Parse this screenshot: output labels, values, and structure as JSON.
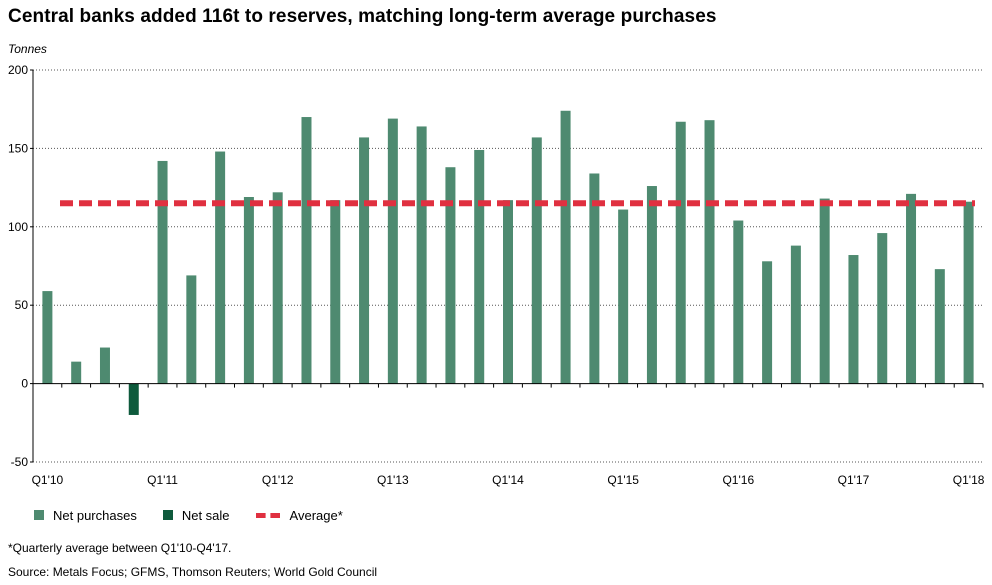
{
  "title": "Central banks added 116t to reserves, matching long-term average purchases",
  "unit_label": "Tonnes",
  "footnote": "*Quarterly average between Q1'10-Q4'17.",
  "source": "Source: Metals Focus; GFMS, Thomson Reuters; World Gold Council",
  "colors": {
    "net_purchases": "#4e8a70",
    "net_sale": "#0e5a3c",
    "average": "#e03040"
  },
  "legend": {
    "net_purchases": "Net purchases",
    "net_sale": "Net sale",
    "average": "Average*"
  },
  "chart_data": {
    "type": "bar",
    "ylim": [
      -50,
      200
    ],
    "yticks": [
      -50,
      0,
      50,
      100,
      150,
      200
    ],
    "grid": true,
    "legend_position": "bottom",
    "categories": [
      "Q1'10",
      "Q2'10",
      "Q3'10",
      "Q4'10",
      "Q1'11",
      "Q2'11",
      "Q3'11",
      "Q4'11",
      "Q1'12",
      "Q2'12",
      "Q3'12",
      "Q4'12",
      "Q1'13",
      "Q2'13",
      "Q3'13",
      "Q4'13",
      "Q1'14",
      "Q2'14",
      "Q3'14",
      "Q4'14",
      "Q1'15",
      "Q2'15",
      "Q3'15",
      "Q4'15",
      "Q1'16",
      "Q2'16",
      "Q3'16",
      "Q4'16",
      "Q1'17",
      "Q2'17",
      "Q3'17",
      "Q4'17",
      "Q1'18"
    ],
    "xtick_labels": [
      "Q1'10",
      "Q1'11",
      "Q1'12",
      "Q1'13",
      "Q1'14",
      "Q1'15",
      "Q1'16",
      "Q1'17",
      "Q1'18"
    ],
    "values": [
      59,
      14,
      23,
      -20,
      142,
      69,
      148,
      119,
      122,
      170,
      117,
      157,
      169,
      164,
      138,
      149,
      117,
      157,
      174,
      134,
      111,
      126,
      167,
      168,
      104,
      78,
      88,
      118,
      82,
      96,
      121,
      73,
      116
    ],
    "average": 115
  }
}
